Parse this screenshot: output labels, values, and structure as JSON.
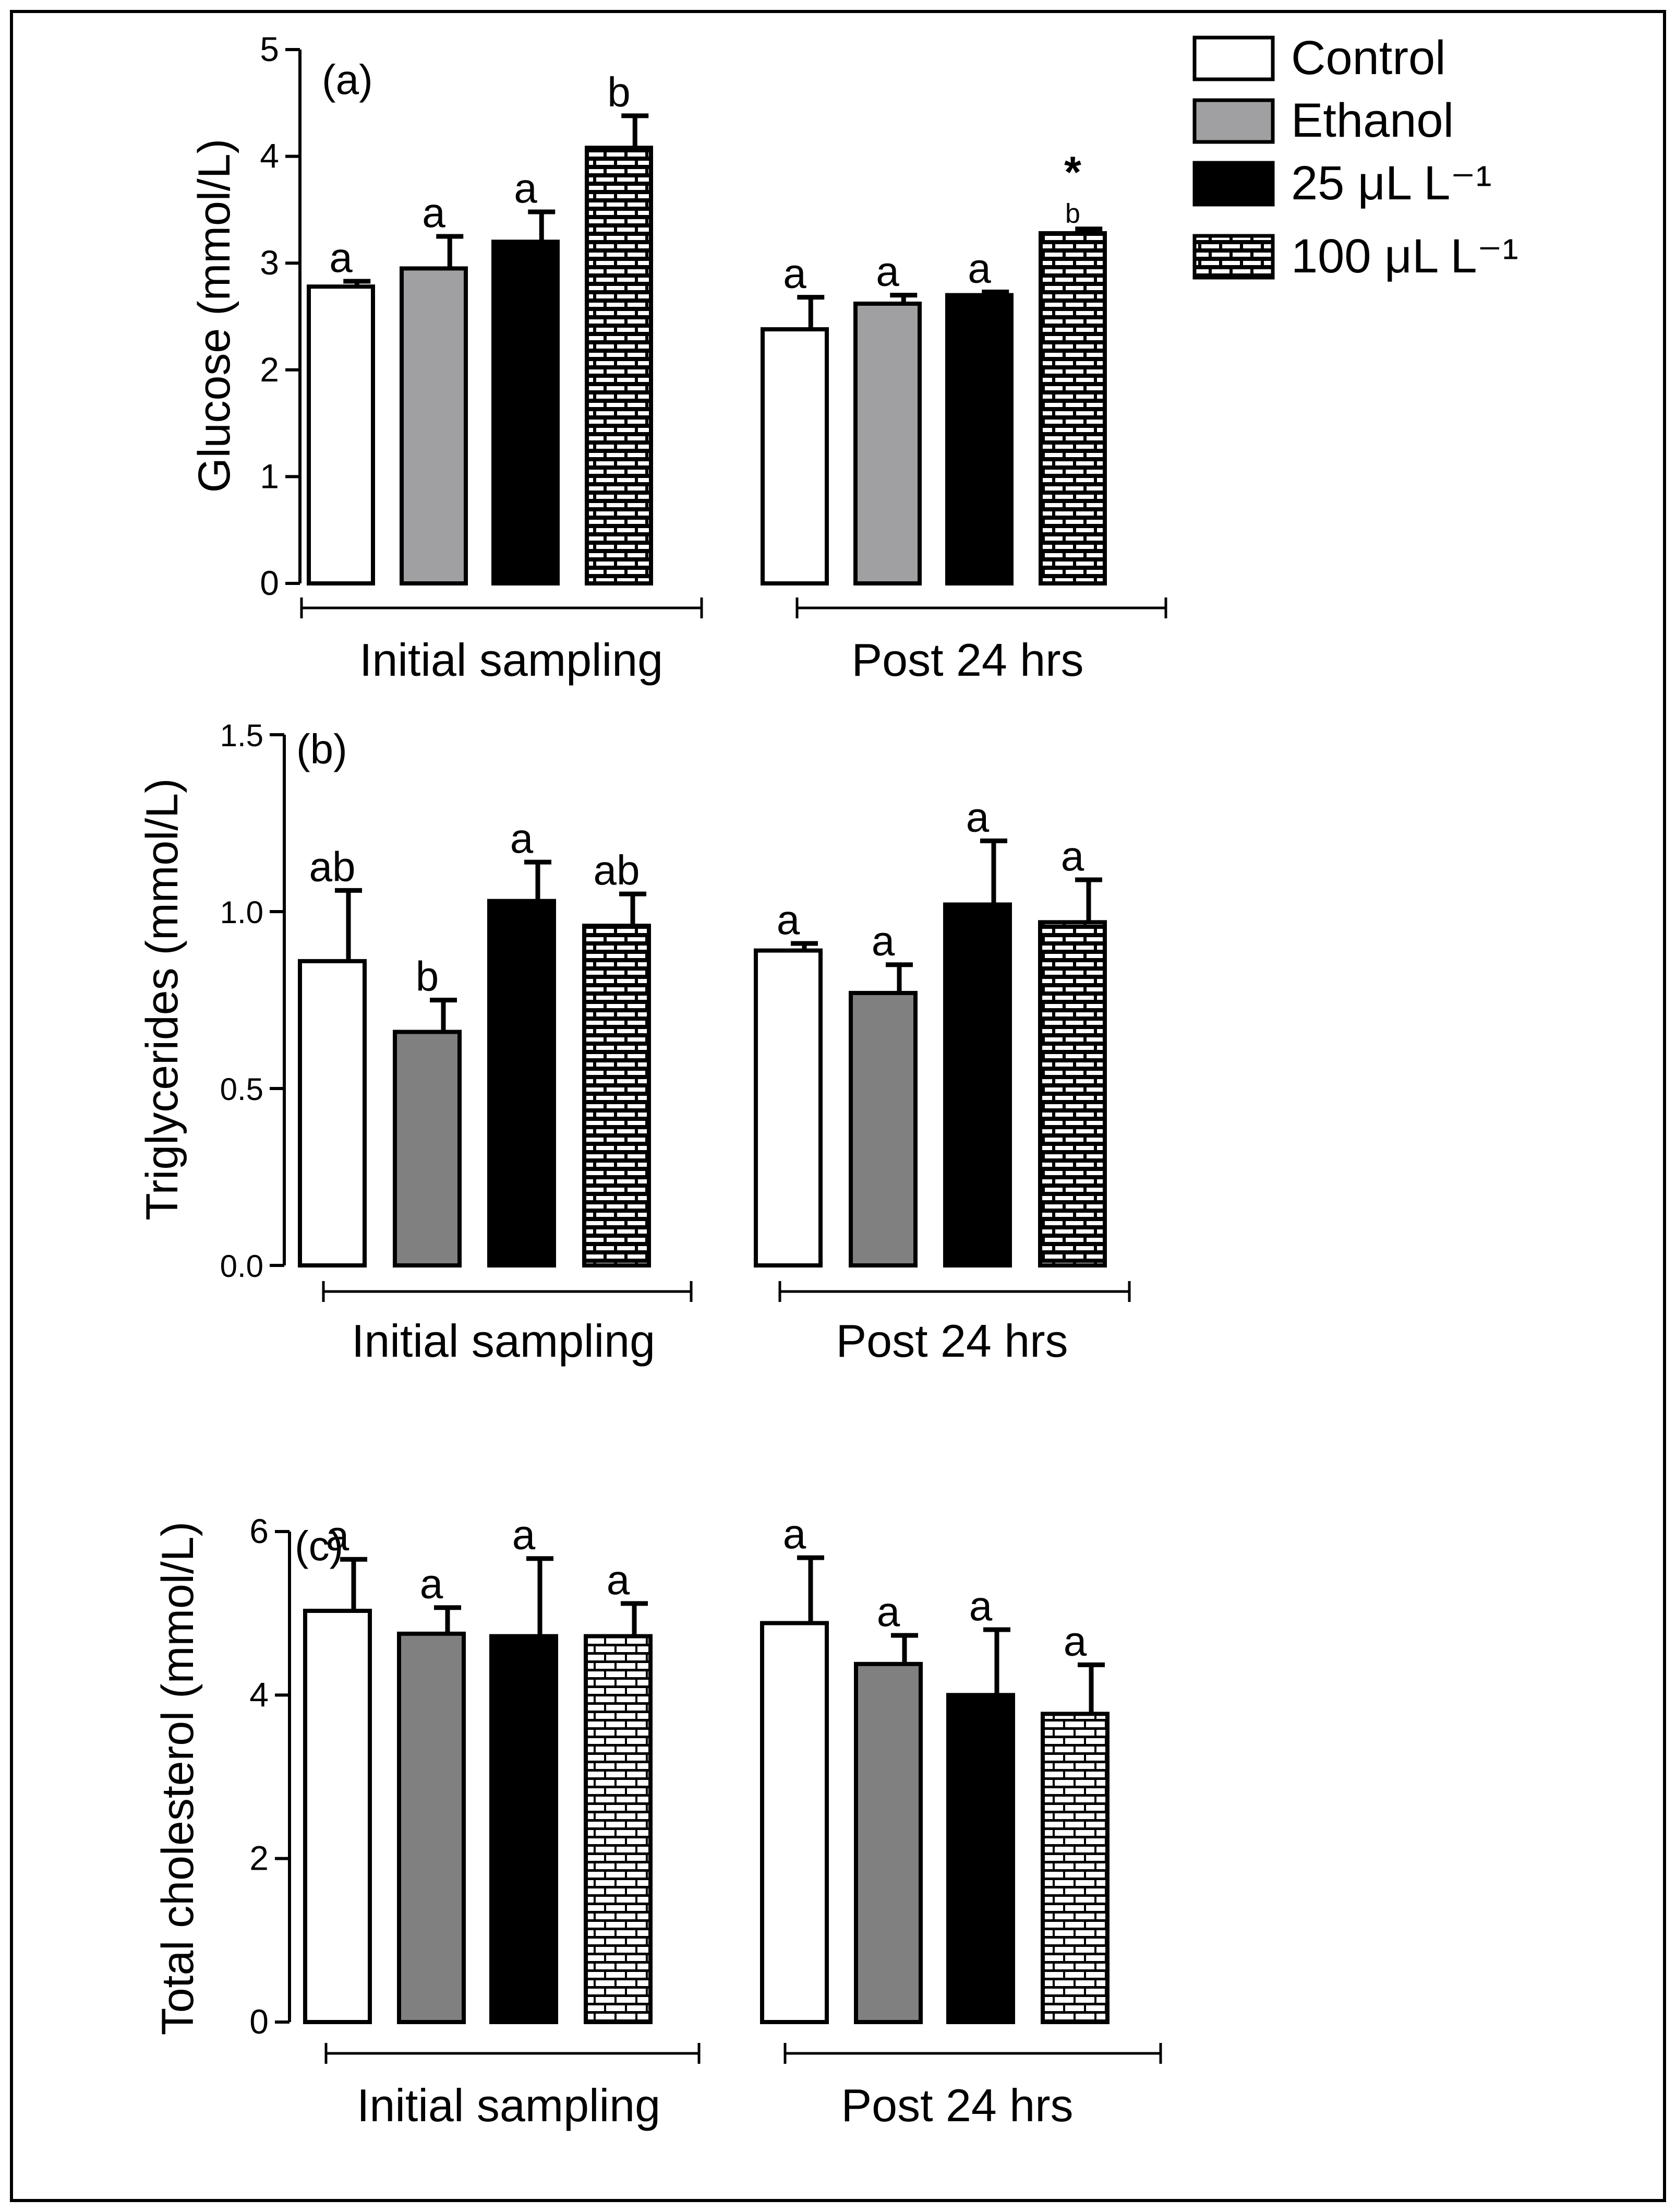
{
  "legend": {
    "entries": [
      {
        "label": "Control",
        "style": "white"
      },
      {
        "label": "Ethanol",
        "style": "gray"
      },
      {
        "label": "25 μL L⁻¹",
        "style": "black"
      },
      {
        "label": "100 μL L⁻¹",
        "style": "brick"
      }
    ]
  },
  "colors": {
    "white": "#ffffff",
    "gray": "#a0a0a2",
    "dark_gray": "#808080",
    "black": "#000000",
    "frame": "#000000"
  },
  "chart_data": [
    {
      "id": "glucose",
      "type": "bar",
      "panel_label": "(a)",
      "ylabel": "Glucose (mmol/L)",
      "ylim": [
        0,
        5
      ],
      "yticks": [
        "0",
        "1",
        "2",
        "3",
        "4",
        "5"
      ],
      "groups": [
        "Initial sampling",
        "Post 24 hrs"
      ],
      "series_styles": [
        "white",
        "gray",
        "black",
        "brick"
      ],
      "series": [
        {
          "name": "Control",
          "values": [
            2.78,
            2.38
          ],
          "errors": [
            0.05,
            0.3
          ],
          "letters": [
            "a",
            "a"
          ]
        },
        {
          "name": "Ethanol",
          "values": [
            2.95,
            2.62
          ],
          "errors": [
            0.3,
            0.08
          ],
          "letters": [
            "a",
            "a"
          ]
        },
        {
          "name": "25 μL L⁻¹",
          "values": [
            3.2,
            2.7
          ],
          "errors": [
            0.28,
            0.03
          ],
          "letters": [
            "a",
            "a"
          ]
        },
        {
          "name": "100 μL L⁻¹",
          "values": [
            4.08,
            3.28
          ],
          "errors": [
            0.3,
            0.04
          ],
          "letters": [
            "b",
            "b"
          ],
          "extra_marks": [
            "",
            "*"
          ]
        }
      ]
    },
    {
      "id": "triglycerides",
      "type": "bar",
      "panel_label": "(b)",
      "ylabel": "Triglycerides (mmol/L)",
      "ylim": [
        0,
        1.5
      ],
      "yticks": [
        "0.0",
        "0.5",
        "1.0",
        "1.5"
      ],
      "groups": [
        "Initial sampling",
        "Post 24 hrs"
      ],
      "series_styles": [
        "white",
        "dark_gray",
        "black",
        "brick"
      ],
      "series": [
        {
          "name": "Control",
          "values": [
            0.86,
            0.89
          ],
          "errors": [
            0.2,
            0.02
          ],
          "letters": [
            "ab",
            "a"
          ]
        },
        {
          "name": "Ethanol",
          "values": [
            0.66,
            0.77
          ],
          "errors": [
            0.09,
            0.08
          ],
          "letters": [
            "b",
            "a"
          ]
        },
        {
          "name": "25 μL L⁻¹",
          "values": [
            1.03,
            1.02
          ],
          "errors": [
            0.11,
            0.18
          ],
          "letters": [
            "a",
            "a"
          ]
        },
        {
          "name": "100 μL L⁻¹",
          "values": [
            0.96,
            0.97
          ],
          "errors": [
            0.09,
            0.12
          ],
          "letters": [
            "ab",
            "a"
          ]
        }
      ]
    },
    {
      "id": "cholesterol",
      "type": "bar",
      "panel_label": "(c)",
      "ylabel": "Total cholesterol (mmol/L)",
      "ylim": [
        0,
        6
      ],
      "yticks": [
        "0",
        "2",
        "4",
        "6"
      ],
      "groups": [
        "Initial sampling",
        "Post 24 hrs"
      ],
      "series_styles": [
        "white",
        "dark_gray",
        "black",
        "brick_light"
      ],
      "series": [
        {
          "name": "Control",
          "values": [
            5.03,
            4.88
          ],
          "errors": [
            0.63,
            0.8
          ],
          "letters": [
            "a",
            "a"
          ]
        },
        {
          "name": "Ethanol",
          "values": [
            4.75,
            4.38
          ],
          "errors": [
            0.32,
            0.35
          ],
          "letters": [
            "a",
            "a"
          ]
        },
        {
          "name": "25 μL L⁻¹",
          "values": [
            4.72,
            4.0
          ],
          "errors": [
            0.95,
            0.8
          ],
          "letters": [
            "a",
            "a"
          ]
        },
        {
          "name": "100 μL L⁻¹",
          "values": [
            4.72,
            3.77
          ],
          "errors": [
            0.4,
            0.6
          ],
          "letters": [
            "a",
            "a"
          ]
        }
      ]
    }
  ]
}
